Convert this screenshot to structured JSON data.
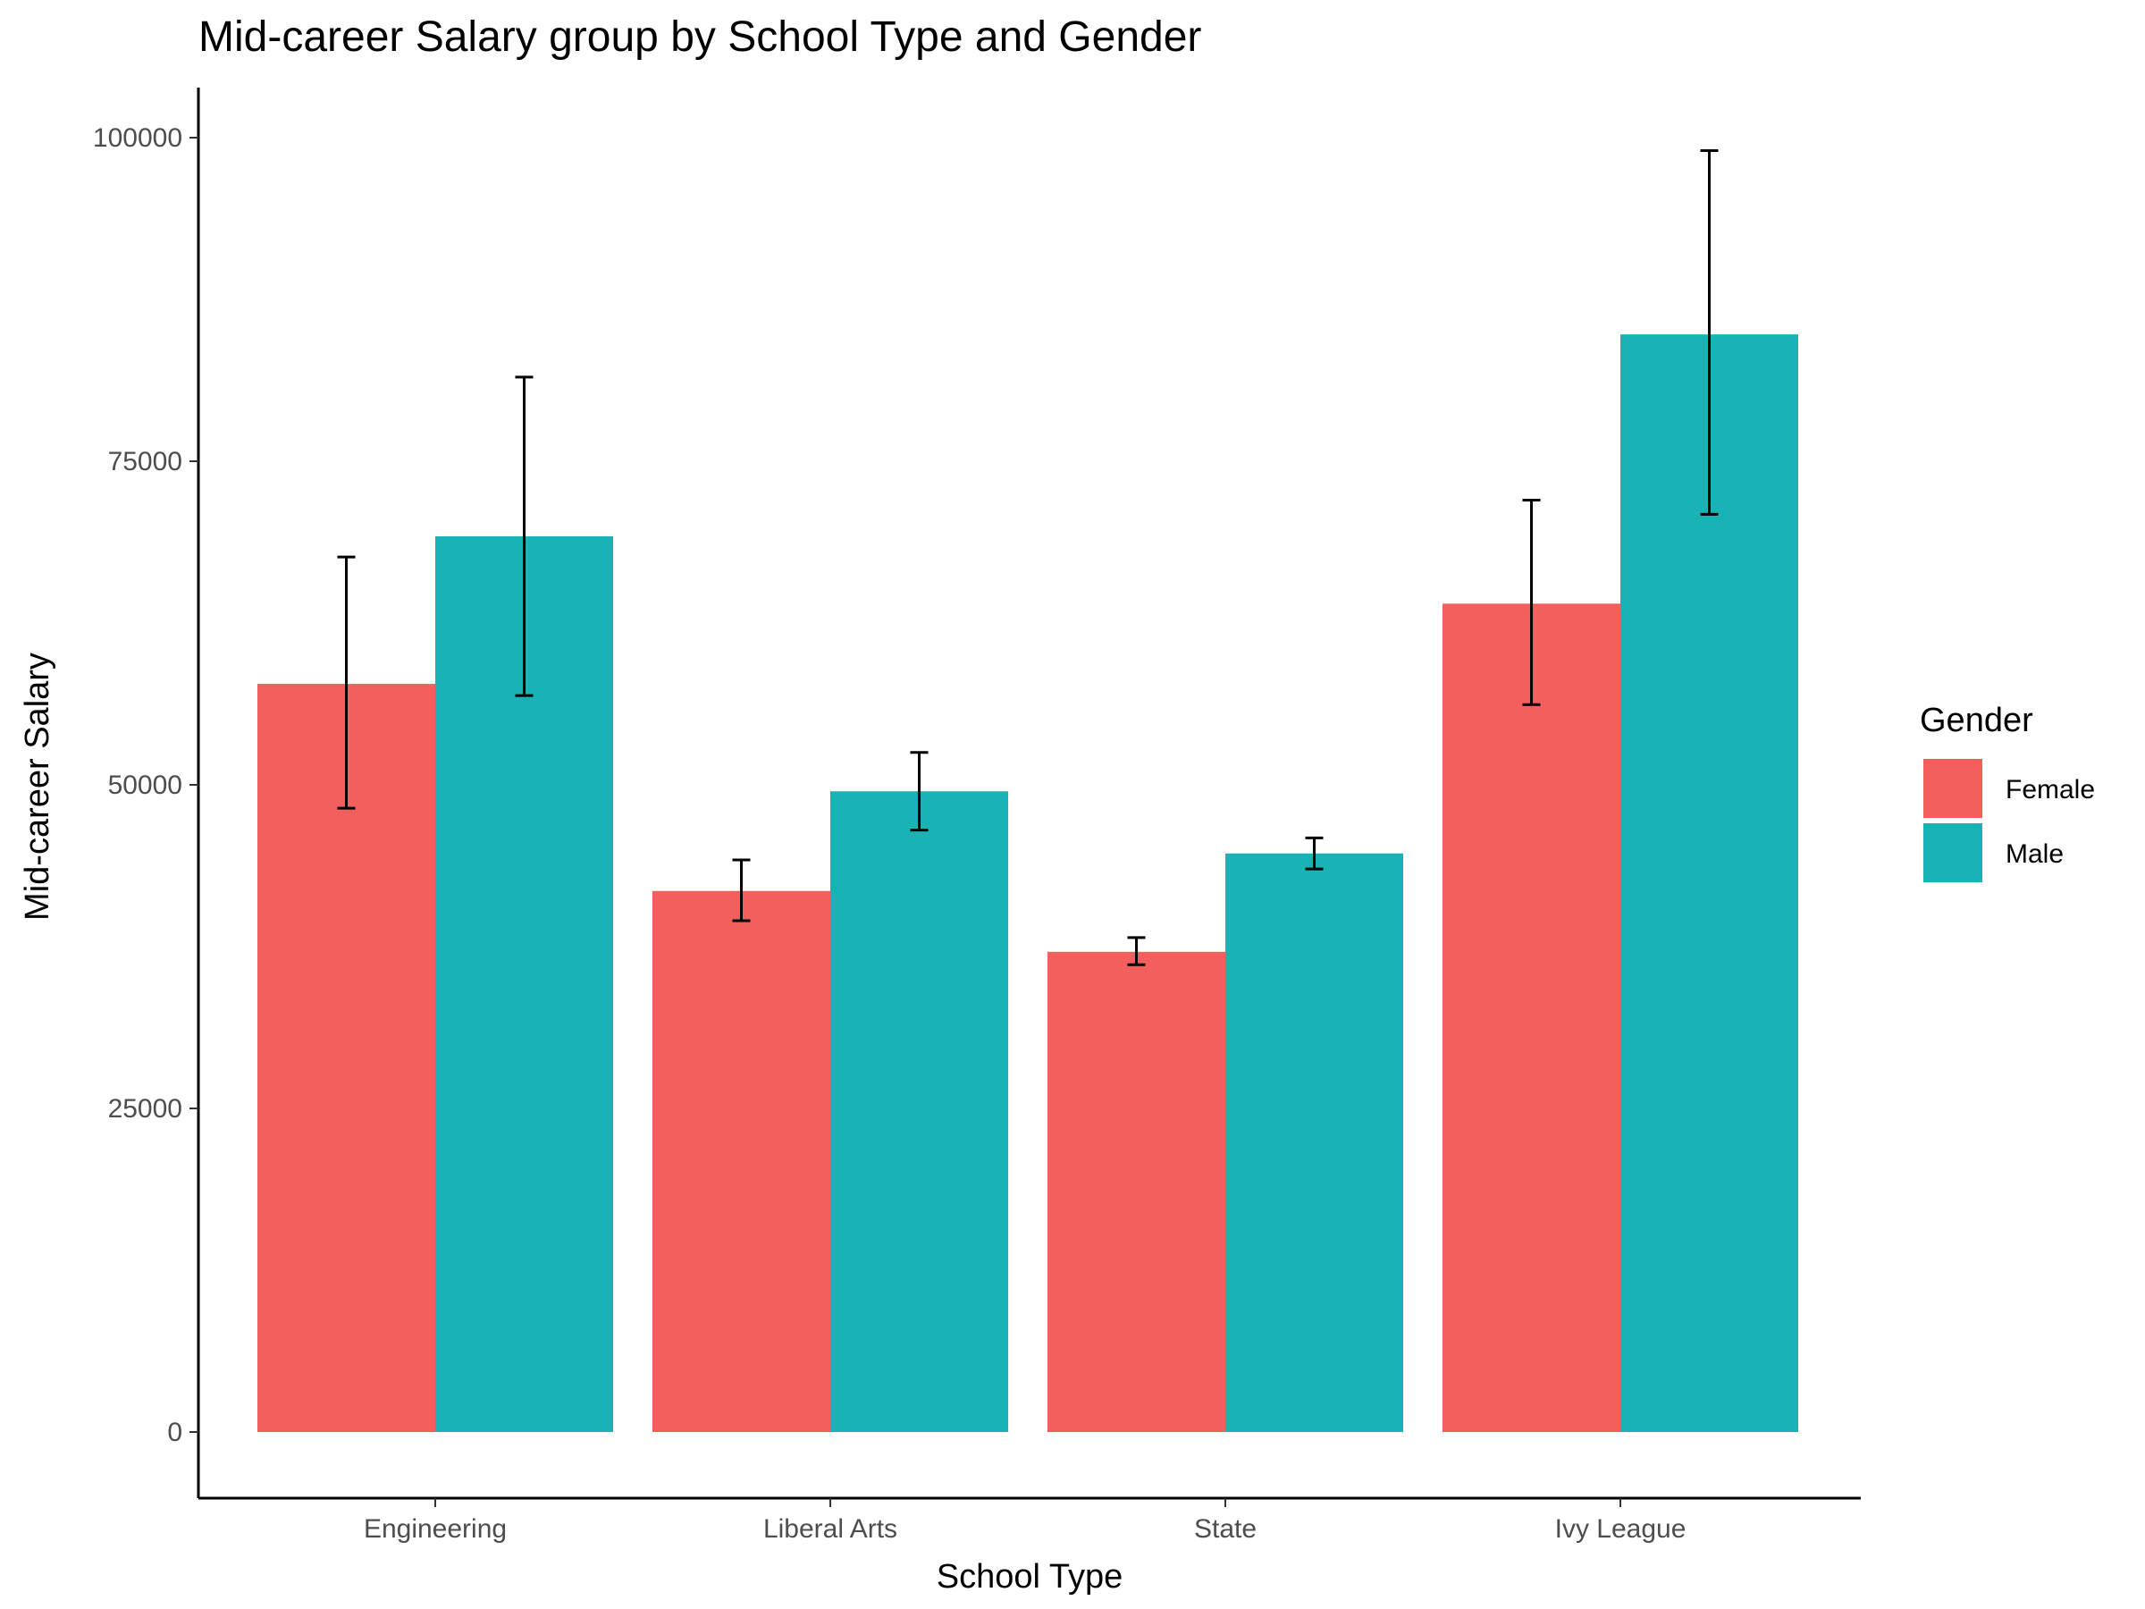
{
  "chart_data": {
    "type": "bar",
    "title": "Mid-career Salary group by School Type and Gender",
    "xlabel": "School Type",
    "ylabel": "Mid-career Salary",
    "categories": [
      "Engineering",
      "Liberal Arts",
      "State",
      "Ivy League"
    ],
    "yticks": [
      "0",
      "25000",
      "50000",
      "75000",
      "100000"
    ],
    "ylim": [
      -3000,
      104000
    ],
    "grid": false,
    "legend": {
      "title": "Gender",
      "position": "right"
    },
    "series": [
      {
        "name": "Female",
        "color": "#F25F5C",
        "values": [
          57800,
          41800,
          37100,
          64000
        ],
        "error_low": [
          48200,
          39500,
          36100,
          56200
        ],
        "error_high": [
          67600,
          44200,
          38200,
          72000
        ]
      },
      {
        "name": "Male",
        "color": "#19B3B6",
        "values": [
          69200,
          49500,
          44700,
          84800
        ],
        "error_low": [
          56900,
          46500,
          43500,
          70900
        ],
        "error_high": [
          81500,
          52500,
          45900,
          99000
        ]
      }
    ]
  }
}
